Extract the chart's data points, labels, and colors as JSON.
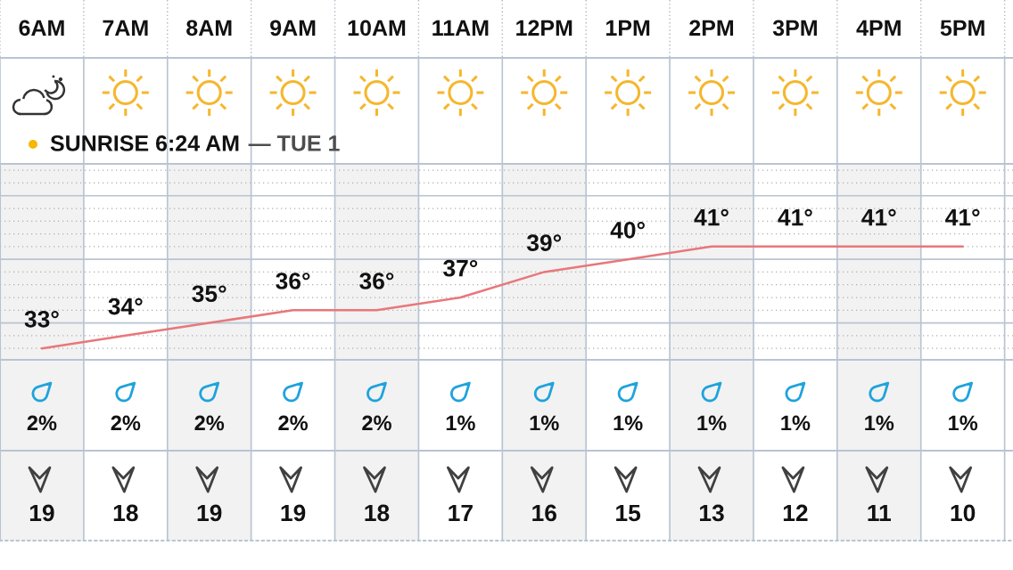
{
  "chart_data": [
    {
      "type": "line",
      "categories": [
        "6AM",
        "7AM",
        "8AM",
        "9AM",
        "10AM",
        "11AM",
        "12PM",
        "1PM",
        "2PM",
        "3PM",
        "4PM",
        "5PM"
      ],
      "series": [
        {
          "color": "#e8777a",
          "values": [
            33,
            34,
            35,
            36,
            36,
            37,
            39,
            40,
            41,
            41,
            41,
            41
          ],
          "value_labels": [
            "33°",
            "34°",
            "35°",
            "36°",
            "36°",
            "37°",
            "39°",
            "40°",
            "41°",
            "41°",
            "41°",
            "41°"
          ]
        }
      ],
      "ylim": [
        32.1,
        47.5
      ],
      "yticks": [
        {
          "value": 35,
          "label": null
        },
        {
          "value": 40,
          "label": null
        },
        {
          "value": 45,
          "label": null
        }
      ],
      "grid": "y",
      "tick_labels": "x",
      "annotations": [
        "SUNRISE 6:24 AM",
        "— TUE 1"
      ]
    },
    {
      "type": "other",
      "values": [
        2,
        2,
        2,
        2,
        2,
        1,
        1,
        1,
        1,
        1,
        1,
        1
      ],
      "value_labels": [
        "2%",
        "2%",
        "2%",
        "2%",
        "2%",
        "1%",
        "1%",
        "1%",
        "1%",
        "1%",
        "1%",
        "1%"
      ]
    },
    {
      "type": "other",
      "values": [
        19,
        18,
        19,
        19,
        18,
        17,
        16,
        15,
        13,
        12,
        11,
        10
      ],
      "data_labels": true
    }
  ]
}
